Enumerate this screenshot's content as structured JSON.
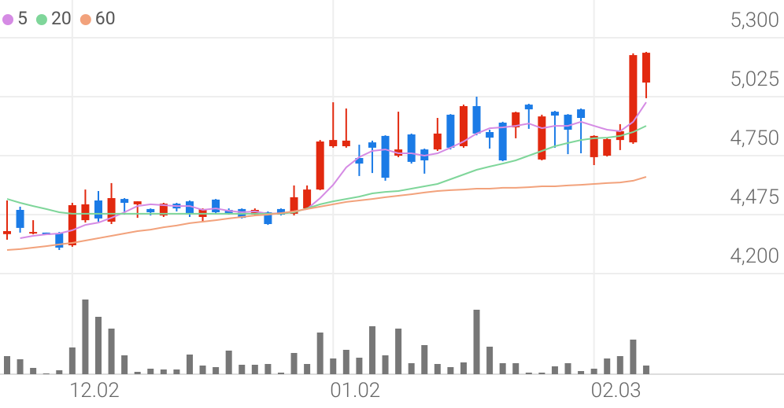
{
  "chart_data": {
    "type": "candlestick",
    "categories": [
      null,
      null,
      null,
      null,
      null,
      "12.02",
      null,
      null,
      null,
      null,
      null,
      null,
      null,
      null,
      null,
      null,
      null,
      null,
      null,
      null,
      null,
      null,
      null,
      null,
      null,
      "01.02",
      null,
      null,
      null,
      null,
      null,
      null,
      null,
      null,
      null,
      null,
      null,
      null,
      null,
      null,
      null,
      null,
      null,
      null,
      null,
      "02.03",
      null,
      null,
      null,
      null
    ],
    "open": [
      4384,
      4497,
      4387,
      4391,
      4387,
      4332,
      4449,
      4541,
      4442,
      4548,
      4523,
      4501,
      4471,
      4526,
      4537,
      4464,
      4545,
      4497,
      4501,
      4475,
      4486,
      4501,
      4479,
      4504,
      4592,
      4794,
      4794,
      4739,
      4812,
      4842,
      4750,
      4849,
      4779,
      4779,
      4941,
      4794,
      4981,
      4860,
      4904,
      4882,
      4988,
      4732,
      4955,
      4941,
      4966,
      4743,
      4750,
      4823,
      4812,
      5091
    ],
    "high": [
      4541,
      4512,
      4449,
      4391,
      4394,
      4530,
      4592,
      4585,
      4622,
      4552,
      4537,
      4504,
      4530,
      4530,
      4541,
      4504,
      4548,
      4504,
      4504,
      4504,
      4490,
      4504,
      4611,
      4611,
      4823,
      4999,
      4970,
      4801,
      4820,
      4845,
      4955,
      4853,
      4783,
      4926,
      4944,
      4988,
      5025,
      4871,
      4908,
      4955,
      4992,
      4941,
      4959,
      4944,
      4970,
      4845,
      4831,
      4897,
      5227,
      5234
    ],
    "low": [
      4358,
      4391,
      4383,
      4380,
      4310,
      4325,
      4438,
      4442,
      4431,
      4475,
      4460,
      4471,
      4464,
      4490,
      4464,
      4442,
      4482,
      4475,
      4457,
      4471,
      4427,
      4471,
      4471,
      4501,
      4589,
      4787,
      4787,
      4655,
      4669,
      4633,
      4743,
      4713,
      4666,
      4772,
      4779,
      4787,
      4845,
      4783,
      4724,
      4831,
      4875,
      4728,
      4787,
      4757,
      4761,
      4706,
      4746,
      4776,
      4805,
      5018
    ],
    "close": [
      4398,
      4413,
      4394,
      4380,
      4321,
      4519,
      4523,
      4457,
      4552,
      4530,
      4537,
      4486,
      4526,
      4504,
      4479,
      4501,
      4486,
      4482,
      4460,
      4497,
      4431,
      4475,
      4556,
      4592,
      4816,
      4823,
      4820,
      4713,
      4787,
      4647,
      4779,
      4721,
      4728,
      4853,
      4787,
      4981,
      4853,
      4834,
      4728,
      4952,
      4966,
      4933,
      4937,
      4871,
      4926,
      4842,
      4827,
      4864,
      5219,
      5230
    ],
    "up_color": "#e2290f",
    "down_color": "#1b7be6",
    "ylim": [
      4200,
      5300
    ],
    "yticks": [
      {
        "value": 4200,
        "label": "4,200"
      },
      {
        "value": 4475,
        "label": "4,475"
      },
      {
        "value": 4750,
        "label": "4,750"
      },
      {
        "value": 5025,
        "label": "5,025"
      },
      {
        "value": 5300,
        "label": "5,300"
      }
    ],
    "series": [
      {
        "name": "5",
        "color": "#d58be4",
        "values": [
          null,
          4365,
          4376,
          4383,
          4387,
          4402,
          4427,
          4438,
          4460,
          4486,
          4515,
          4523,
          4519,
          4515,
          4515,
          4497,
          4504,
          4493,
          4486,
          4490,
          4479,
          4482,
          4490,
          4501,
          4552,
          4614,
          4695,
          4743,
          4772,
          4779,
          4761,
          4761,
          4750,
          4761,
          4787,
          4816,
          4853,
          4878,
          4882,
          4889,
          4900,
          4878,
          4889,
          4889,
          4908,
          4889,
          4871,
          4864,
          4908,
          4999
        ]
      },
      {
        "name": "20",
        "color": "#7fd69a",
        "values": [
          4548,
          4530,
          4515,
          4501,
          4486,
          4479,
          4479,
          4479,
          4479,
          4479,
          4479,
          4479,
          4479,
          4479,
          4479,
          4479,
          4479,
          4479,
          4479,
          4479,
          4479,
          4479,
          4486,
          4504,
          4523,
          4537,
          4548,
          4559,
          4574,
          4581,
          4585,
          4596,
          4607,
          4618,
          4640,
          4662,
          4684,
          4699,
          4713,
          4728,
          4750,
          4772,
          4794,
          4809,
          4823,
          4831,
          4834,
          4842,
          4860,
          4889
        ]
      },
      {
        "name": "60",
        "color": "#f2a27c",
        "values": [
          4310,
          4314,
          4321,
          4328,
          4336,
          4343,
          4354,
          4365,
          4376,
          4387,
          4398,
          4405,
          4416,
          4424,
          4435,
          4442,
          4449,
          4457,
          4464,
          4471,
          4475,
          4482,
          4490,
          4501,
          4512,
          4523,
          4534,
          4541,
          4548,
          4556,
          4563,
          4570,
          4578,
          4585,
          4589,
          4592,
          4596,
          4596,
          4600,
          4600,
          4603,
          4607,
          4607,
          4611,
          4614,
          4618,
          4622,
          4625,
          4633,
          4651
        ]
      }
    ],
    "volume": {
      "color": "#777777",
      "values": [
        23,
        19,
        8,
        1,
        5,
        34,
        95,
        73,
        58,
        24,
        3,
        7,
        6,
        6,
        25,
        11,
        9,
        30,
        12,
        12,
        13,
        2,
        27,
        13,
        53,
        20,
        31,
        21,
        61,
        24,
        58,
        14,
        37,
        13,
        9,
        15,
        82,
        35,
        14,
        14,
        2,
        2,
        10,
        14,
        4,
        7,
        20,
        23,
        44,
        11
      ]
    },
    "grid": true
  }
}
